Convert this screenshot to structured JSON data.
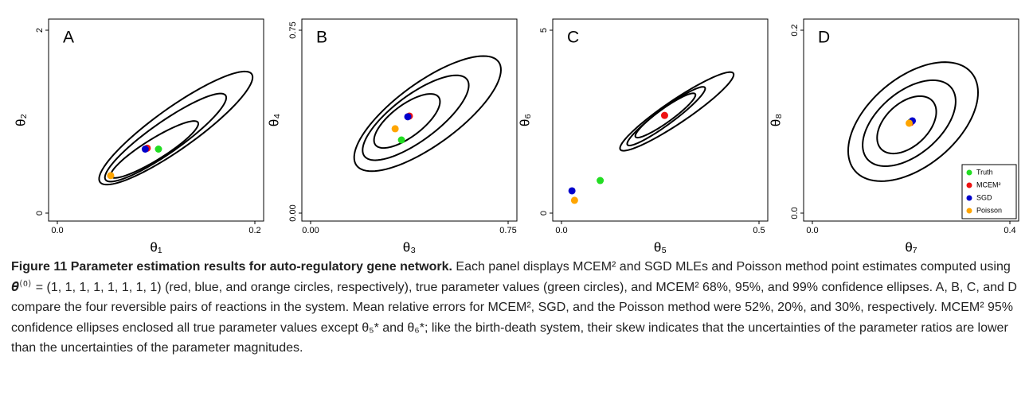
{
  "chart_data": [
    {
      "type": "scatter",
      "label": "A",
      "xlabel": "θ₁",
      "ylabel": "θ₂",
      "xlim": [
        0,
        0.2
      ],
      "ylim": [
        0,
        2
      ],
      "xticks": [
        {
          "value": 0,
          "label": "0.0"
        },
        0.2
      ],
      "yticks": [
        0,
        2
      ],
      "ellipses": [
        {
          "center": [
            0.0984,
            0.696
          ],
          "a": [
            0.044,
            0.296
          ],
          "b": [
            0.0056,
            -0.096
          ]
        },
        {
          "center": [
            0.1096,
            0.826
          ],
          "a": [
            0.0608,
            0.461
          ],
          "b": [
            0.0088,
            -0.139
          ]
        },
        {
          "center": [
            0.12,
            0.93
          ],
          "a": [
            0.0768,
            0.591
          ],
          "b": [
            0.012,
            -0.183
          ]
        }
      ],
      "series": [
        {
          "color": "#22dd22",
          "x": [
            0.1024
          ],
          "values": [
            0.7
          ]
        },
        {
          "color": "#ee1111",
          "x": [
            0.091
          ],
          "values": [
            0.71
          ]
        },
        {
          "color": "#0000cc",
          "x": [
            0.089
          ],
          "values": [
            0.7
          ]
        },
        {
          "color": "#ffa500",
          "x": [
            0.054
          ],
          "values": [
            0.41
          ]
        }
      ]
    },
    {
      "type": "scatter",
      "label": "B",
      "xlabel": "θ₃",
      "ylabel": "θ₄",
      "xlim": [
        0,
        0.75
      ],
      "ylim": [
        0,
        0.75
      ],
      "xticks": [
        {
          "value": 0,
          "label": "0.00"
        },
        0.75
      ],
      "yticks": [
        {
          "value": 0,
          "label": "0.00"
        },
        0.75
      ],
      "ellipses": [
        {
          "center": [
            0.366,
            0.378
          ],
          "a": [
            0.12,
            0.098
          ],
          "b": [
            0.036,
            -0.052
          ]
        },
        {
          "center": [
            0.399,
            0.391
          ],
          "a": [
            0.195,
            0.157
          ],
          "b": [
            0.051,
            -0.075
          ]
        },
        {
          "center": [
            0.444,
            0.408
          ],
          "a": [
            0.27,
            0.212
          ],
          "b": [
            0.069,
            -0.104
          ]
        }
      ],
      "series": [
        {
          "color": "#22dd22",
          "x": [
            0.345
          ],
          "values": [
            0.3
          ]
        },
        {
          "color": "#ee1111",
          "x": [
            0.375
          ],
          "values": [
            0.398
          ]
        },
        {
          "color": "#0000cc",
          "x": [
            0.369
          ],
          "values": [
            0.395
          ]
        },
        {
          "color": "#ffa500",
          "x": [
            0.321
          ],
          "values": [
            0.346
          ]
        }
      ]
    },
    {
      "type": "scatter",
      "label": "C",
      "xlabel": "θ₅",
      "ylabel": "θ₆",
      "xlim": [
        0,
        0.5
      ],
      "ylim": [
        0,
        5
      ],
      "xticks": [
        {
          "value": 0,
          "label": "0.0"
        },
        0.5
      ],
      "yticks": [
        0,
        5
      ],
      "ellipses": [
        {
          "center": [
            0.263,
            2.67
          ],
          "a": [
            0.0755,
            0.587
          ],
          "b": [
            0.0102,
            -0.152
          ]
        },
        {
          "center": [
            0.265,
            2.65
          ],
          "a": [
            0.098,
            0.783
          ],
          "b": [
            0.0122,
            -0.174
          ]
        },
        {
          "center": [
            0.292,
            2.78
          ],
          "a": [
            0.143,
            1.043
          ],
          "b": [
            0.0163,
            -0.261
          ]
        }
      ],
      "series": [
        {
          "color": "#22dd22",
          "x": [
            0.098
          ],
          "values": [
            0.89
          ]
        },
        {
          "color": "#ee1111",
          "x": [
            0.261
          ],
          "values": [
            2.67
          ]
        },
        {
          "color": "#0000cc",
          "x": [
            0.0265
          ],
          "values": [
            0.61
          ]
        },
        {
          "color": "#ffa500",
          "x": [
            0.033
          ],
          "values": [
            0.35
          ]
        }
      ]
    },
    {
      "type": "scatter",
      "label": "D",
      "xlabel": "θ₇",
      "ylabel": "θ₈",
      "xlim": [
        0,
        0.4
      ],
      "ylim": [
        0,
        0.2
      ],
      "xticks": [
        {
          "value": 0,
          "label": "0.0"
        },
        0.4
      ],
      "yticks": [
        {
          "value": 0,
          "label": "0.0"
        },
        0.2
      ],
      "legend": "bottom-right",
      "ellipses": [
        {
          "center": [
            0.191,
            0.0965
          ],
          "a": [
            0.0522,
            0.0261
          ],
          "b": [
            0.0294,
            -0.0174
          ]
        },
        {
          "center": [
            0.196,
            0.0983
          ],
          "a": [
            0.0849,
            0.0391
          ],
          "b": [
            0.0408,
            -0.0261
          ]
        },
        {
          "center": [
            0.204,
            0.1
          ],
          "a": [
            0.1176,
            0.0539
          ],
          "b": [
            0.0588,
            -0.0365
          ]
        }
      ],
      "series": [
        {
          "name": "Truth",
          "color": "#22dd22",
          "x": [
            0.199
          ],
          "values": [
            0.0995
          ]
        },
        {
          "name": "MCEM²",
          "color": "#ee1111",
          "x": [
            0.199
          ],
          "values": [
            0.0991
          ]
        },
        {
          "name": "SGD",
          "color": "#0000cc",
          "x": [
            0.2025
          ],
          "values": [
            0.1009
          ]
        },
        {
          "name": "Poisson",
          "color": "#ffa500",
          "x": [
            0.196
          ],
          "values": [
            0.0983
          ]
        }
      ]
    }
  ],
  "caption": {
    "title": "Figure 11 Parameter estimation results for auto-regulatory gene network.",
    "text": "Each panel displays MCEM² and SGD MLEs and Poisson method point estimates computed using 𝜽̂⁽⁰⁾ = (1, 1, 1, 1, 1, 1, 1, 1) (red, blue, and orange circles, respectively), true parameter values (green circles), and MCEM² 68%, 95%, and 99% confidence ellipses. A, B, C, and D compare the four reversible pairs of reactions in the system. Mean relative errors for MCEM², SGD, and the Poisson method were 52%, 20%, and 30%, respectively. MCEM² 95% confidence ellipses enclosed all true parameter values except θ₅* and θ₆*; like the birth-death system, their skew indicates that the uncertainties of the parameter ratios are lower than the uncertainties of the parameter magnitudes."
  }
}
